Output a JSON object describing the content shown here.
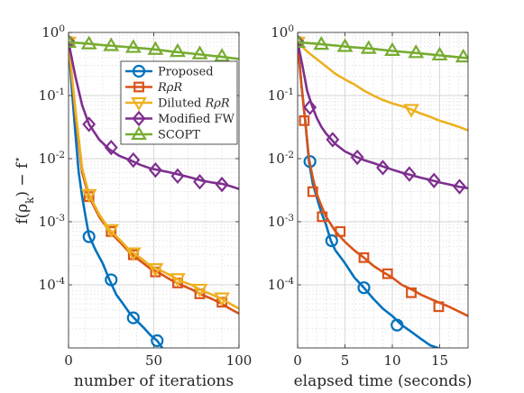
{
  "ylabel": "f(ρ_k) − f*",
  "legend": {
    "placement": "top-right of left panel",
    "entries": [
      "Proposed",
      "RρR",
      "Diluted RρR",
      "Modified FW",
      "SCOPT"
    ]
  },
  "styles": [
    {
      "color": "#0072BD",
      "marker": "circle"
    },
    {
      "color": "#D95319",
      "marker": "square"
    },
    {
      "color": "#EDB120",
      "marker": "triangle-down"
    },
    {
      "color": "#7E2F8E",
      "marker": "diamond"
    },
    {
      "color": "#77AC30",
      "marker": "triangle-up"
    }
  ],
  "chart_data": [
    {
      "type": "line",
      "xlabel": "number of iterations",
      "ylabel": "f(ρ_k) − f*",
      "yscale": "log",
      "xlim": [
        0,
        100
      ],
      "ylim": [
        1e-05,
        1
      ],
      "xticks": [
        0,
        50,
        100
      ],
      "yticks": [
        1,
        0.1,
        0.01,
        0.001,
        0.0001
      ],
      "ytick_labels": [
        "10^0",
        "10^-1",
        "10^-2",
        "10^-3",
        "10^-4"
      ],
      "grid": true,
      "series": [
        {
          "name": "Proposed",
          "line_x": [
            0,
            2,
            4,
            6,
            8,
            10,
            12,
            16,
            20,
            24,
            28,
            32,
            36,
            40,
            44,
            48,
            52,
            55
          ],
          "line_y": [
            0.7,
            0.12,
            0.025,
            0.006,
            0.0025,
            0.0012,
            0.0006,
            0.00035,
            0.00022,
            0.00012,
            7e-05,
            5e-05,
            3.5e-05,
            2.7e-05,
            2.1e-05,
            1.6e-05,
            1.3e-05,
            1e-05
          ],
          "marker_x": [
            0,
            12,
            25,
            38,
            52
          ],
          "marker_y": [
            0.7,
            0.00058,
            0.00012,
            3e-05,
            1.3e-05
          ]
        },
        {
          "name": "RρR",
          "line_x": [
            0,
            4,
            8,
            12,
            18,
            24,
            30,
            36,
            42,
            48,
            54,
            60,
            66,
            72,
            78,
            84,
            90,
            96,
            100
          ],
          "line_y": [
            0.7,
            0.05,
            0.006,
            0.0025,
            0.0012,
            0.0007,
            0.00048,
            0.00032,
            0.00024,
            0.00018,
            0.00015,
            0.00012,
            0.0001,
            8.5e-05,
            7e-05,
            6e-05,
            5e-05,
            4e-05,
            3.5e-05
          ],
          "marker_x": [
            0,
            12,
            25,
            38,
            51,
            64,
            77,
            90
          ],
          "marker_y": [
            0.7,
            0.0025,
            0.0007,
            0.0003,
            0.00016,
            0.000107,
            7.2e-05,
            5.3e-05
          ]
        },
        {
          "name": "Diluted RρR",
          "line_x": [
            0,
            4,
            8,
            12,
            18,
            24,
            30,
            36,
            42,
            48,
            54,
            60,
            66,
            72,
            78,
            84,
            90,
            96,
            100
          ],
          "line_y": [
            0.7,
            0.06,
            0.007,
            0.0027,
            0.0013,
            0.00075,
            0.00052,
            0.00035,
            0.00027,
            0.0002,
            0.00017,
            0.00014,
            0.000115,
            0.0001,
            8.2e-05,
            7e-05,
            6e-05,
            4.8e-05,
            4.2e-05
          ],
          "marker_x": [
            0,
            12,
            25,
            38,
            51,
            64,
            77,
            90
          ],
          "marker_y": [
            0.7,
            0.0027,
            0.00075,
            0.00032,
            0.00018,
            0.000125,
            8.5e-05,
            6.2e-05
          ]
        },
        {
          "name": "Modified FW",
          "line_x": [
            0,
            4,
            8,
            12,
            18,
            24,
            30,
            36,
            42,
            48,
            54,
            60,
            66,
            72,
            78,
            84,
            90,
            96,
            100
          ],
          "line_y": [
            0.7,
            0.2,
            0.07,
            0.035,
            0.02,
            0.014,
            0.011,
            0.0095,
            0.008,
            0.007,
            0.0065,
            0.006,
            0.0055,
            0.005,
            0.0045,
            0.0042,
            0.004,
            0.0036,
            0.0033
          ],
          "marker_x": [
            0,
            12,
            25,
            38,
            51,
            64,
            77,
            90
          ],
          "marker_y": [
            0.7,
            0.035,
            0.015,
            0.0095,
            0.0066,
            0.0053,
            0.0043,
            0.0039
          ]
        },
        {
          "name": "SCOPT",
          "line_x": [
            0,
            10,
            20,
            30,
            40,
            50,
            60,
            70,
            80,
            90,
            100
          ],
          "line_y": [
            0.7,
            0.67,
            0.63,
            0.6,
            0.57,
            0.54,
            0.5,
            0.47,
            0.44,
            0.41,
            0.38
          ],
          "marker_x": [
            0,
            12,
            25,
            38,
            51,
            64,
            77,
            90
          ],
          "marker_y": [
            0.7,
            0.66,
            0.62,
            0.58,
            0.54,
            0.5,
            0.46,
            0.42
          ]
        }
      ]
    },
    {
      "type": "line",
      "xlabel": "elapsed time (seconds)",
      "yscale": "log",
      "xlim": [
        0,
        18
      ],
      "ylim": [
        1e-05,
        1
      ],
      "xticks": [
        0,
        5,
        10,
        15
      ],
      "yticks": [
        1,
        0.1,
        0.01,
        0.001,
        0.0001
      ],
      "ytick_labels": [
        "10^0",
        "10^-1",
        "10^-2",
        "10^-3",
        "10^-4"
      ],
      "grid": true,
      "series": [
        {
          "name": "Proposed",
          "line_x": [
            0,
            0.4,
            0.8,
            1.2,
            1.6,
            2,
            2.5,
            3,
            3.5,
            4,
            5,
            6,
            7,
            8,
            9,
            10,
            11,
            12,
            13,
            14,
            14.8
          ],
          "line_y": [
            0.7,
            0.15,
            0.04,
            0.009,
            0.004,
            0.0025,
            0.0014,
            0.0009,
            0.0005,
            0.00035,
            0.00022,
            0.00013,
            9e-05,
            6e-05,
            4.2e-05,
            3.2e-05,
            2.3e-05,
            1.8e-05,
            1.4e-05,
            1.1e-05,
            1e-05
          ],
          "marker_x": [
            0,
            1.3,
            3.6,
            7,
            10.5
          ],
          "marker_y": [
            0.7,
            0.009,
            0.0005,
            9e-05,
            2.3e-05
          ]
        },
        {
          "name": "RρR",
          "line_x": [
            0,
            0.4,
            0.8,
            1.2,
            1.6,
            2,
            2.5,
            3,
            4,
            5,
            6,
            7,
            8,
            9,
            10,
            11,
            12,
            13,
            14,
            15,
            16,
            17,
            18
          ],
          "line_y": [
            0.7,
            0.15,
            0.04,
            0.01,
            0.005,
            0.0028,
            0.0018,
            0.0012,
            0.0007,
            0.00048,
            0.00035,
            0.00027,
            0.0002,
            0.00016,
            0.00013,
            0.0001,
            8.5e-05,
            7e-05,
            6e-05,
            5.2e-05,
            4.5e-05,
            3.8e-05,
            3.2e-05
          ],
          "marker_x": [
            0,
            0.7,
            1.6,
            2.6,
            4.5,
            7,
            9.5,
            12,
            14.9
          ],
          "marker_y": [
            0.7,
            0.04,
            0.003,
            0.0012,
            0.0007,
            0.00027,
            0.00015,
            7.5e-05,
            4.5e-05
          ]
        },
        {
          "name": "Diluted RρR",
          "line_x": [
            0,
            1,
            2,
            3,
            4,
            5,
            6,
            7,
            8,
            9,
            10,
            11,
            12,
            13,
            14,
            15,
            16,
            17,
            18
          ],
          "line_y": [
            0.7,
            0.5,
            0.38,
            0.29,
            0.22,
            0.18,
            0.15,
            0.12,
            0.1,
            0.085,
            0.075,
            0.068,
            0.06,
            0.052,
            0.046,
            0.04,
            0.036,
            0.032,
            0.028
          ],
          "marker_x": [
            0,
            12
          ],
          "marker_y": [
            0.7,
            0.06
          ]
        },
        {
          "name": "Modified FW",
          "line_x": [
            0,
            0.5,
            1,
            1.5,
            2,
            2.5,
            3,
            4,
            5,
            6,
            7,
            8,
            9,
            10,
            11,
            12,
            13,
            14,
            15,
            16,
            17,
            18
          ],
          "line_y": [
            0.7,
            0.3,
            0.12,
            0.07,
            0.045,
            0.032,
            0.025,
            0.017,
            0.013,
            0.011,
            0.0095,
            0.0085,
            0.0075,
            0.0067,
            0.006,
            0.0055,
            0.005,
            0.0046,
            0.0042,
            0.0039,
            0.0036,
            0.0034
          ],
          "marker_x": [
            0,
            1.3,
            3.7,
            6.3,
            9,
            11.8,
            14.4,
            17.1
          ],
          "marker_y": [
            0.7,
            0.065,
            0.02,
            0.0105,
            0.0072,
            0.0057,
            0.0045,
            0.0036
          ]
        },
        {
          "name": "SCOPT",
          "line_x": [
            0,
            2,
            4,
            6,
            8,
            10,
            12,
            14,
            16,
            18
          ],
          "line_y": [
            0.7,
            0.66,
            0.62,
            0.58,
            0.55,
            0.51,
            0.48,
            0.45,
            0.42,
            0.39
          ],
          "marker_x": [
            0,
            2.5,
            5,
            7.5,
            10,
            12.5,
            15,
            17.5
          ],
          "marker_y": [
            0.7,
            0.65,
            0.6,
            0.56,
            0.52,
            0.48,
            0.44,
            0.41
          ]
        }
      ]
    }
  ]
}
